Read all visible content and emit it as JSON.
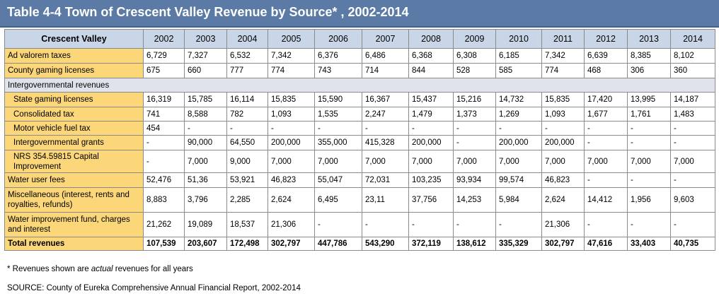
{
  "title": "Table 4-4 Town of Crescent Valley Revenue by Source* , 2002-2014",
  "table": {
    "corner_header": "Crescent Valley",
    "years": [
      "2002",
      "2003",
      "2004",
      "2005",
      "2006",
      "2007",
      "2008",
      "2009",
      "2010",
      "2011",
      "2012",
      "2013",
      "2014"
    ],
    "rows": [
      {
        "label": "Ad valorem taxes",
        "values": [
          "6,729",
          "7,327",
          "6,532",
          "7,342",
          "6,376",
          "6,486",
          "6,368",
          "6,308",
          "6,185",
          "7,342",
          "6,639",
          "8,385",
          "8,102"
        ]
      },
      {
        "label": "County gaming licenses",
        "values": [
          "675",
          "660",
          "777",
          "774",
          "743",
          "714",
          "844",
          "528",
          "585",
          "774",
          "468",
          "306",
          "360"
        ]
      },
      {
        "label": "Intergovernmental revenues",
        "section": true,
        "values": []
      },
      {
        "label": "State gaming licenses",
        "values": [
          "16,319",
          "15,785",
          "16,114",
          "15,835",
          "15,590",
          "16,367",
          "15,437",
          "15,216",
          "14,732",
          "15,835",
          "17,420",
          "13,995",
          "14,187"
        ]
      },
      {
        "label": "Consolidated tax",
        "values": [
          "741",
          "8,588",
          "782",
          "1,093",
          "1,535",
          "2,247",
          "1,479",
          "1,373",
          "1,269",
          "1,093",
          "1,677",
          "1,761",
          "1,483"
        ]
      },
      {
        "label": "Motor vehicle fuel tax",
        "values": [
          "454",
          "-",
          "-",
          "-",
          "-",
          "-",
          "-",
          "-",
          "-",
          "-",
          "-",
          "-",
          "-"
        ]
      },
      {
        "label": "Intergovernmental grants",
        "values": [
          "-",
          "90,000",
          "64,550",
          "200,000",
          "355,000",
          "415,328",
          "200,000",
          "-",
          "200,000",
          "200,000",
          "-",
          "-",
          "-"
        ]
      },
      {
        "label": "NRS 354.59815 Capital Improvement",
        "values": [
          "-",
          "7,000",
          "9,000",
          "7,000",
          "7,000",
          "7,000",
          "7,000",
          "7,000",
          "7,000",
          "7,000",
          "7,000",
          "7,000",
          "7,000"
        ]
      },
      {
        "label": "Water user fees",
        "values": [
          "52,476",
          "51,36",
          "53,921",
          "46,823",
          "55,047",
          "72,031",
          "103,235",
          "93,934",
          "99,574",
          "46,823",
          "-",
          "-",
          "-"
        ]
      },
      {
        "label": "Miscellaneous (interest, rents and royalties, refunds)",
        "values": [
          "8,883",
          "3,796",
          "2,285",
          "2,624",
          "6,495",
          "23,11",
          "37,756",
          "14,253",
          "5,984",
          "2,624",
          "14,412",
          "1,956",
          "9,603"
        ]
      },
      {
        "label": "Water improvement fund, charges and interest",
        "values": [
          "21,262",
          "19,089",
          "18,537",
          "21,306",
          "-",
          "-",
          "-",
          "-",
          "-",
          "21,306",
          "-",
          "-",
          "-"
        ]
      },
      {
        "label": "Total revenues",
        "total": true,
        "values": [
          "107,539",
          "203,607",
          "172,498",
          "302,797",
          "447,786",
          "543,290",
          "372,119",
          "138,612",
          "335,329",
          "302,797",
          "47,616",
          "33,403",
          "40,735"
        ]
      }
    ]
  },
  "footnote": {
    "prefix": "* Revenues shown are ",
    "emph": "actual",
    "suffix": " revenues for all years"
  },
  "source": "SOURCE: County of Eureka Comprehensive Annual Financial Report, 2002-2014"
}
